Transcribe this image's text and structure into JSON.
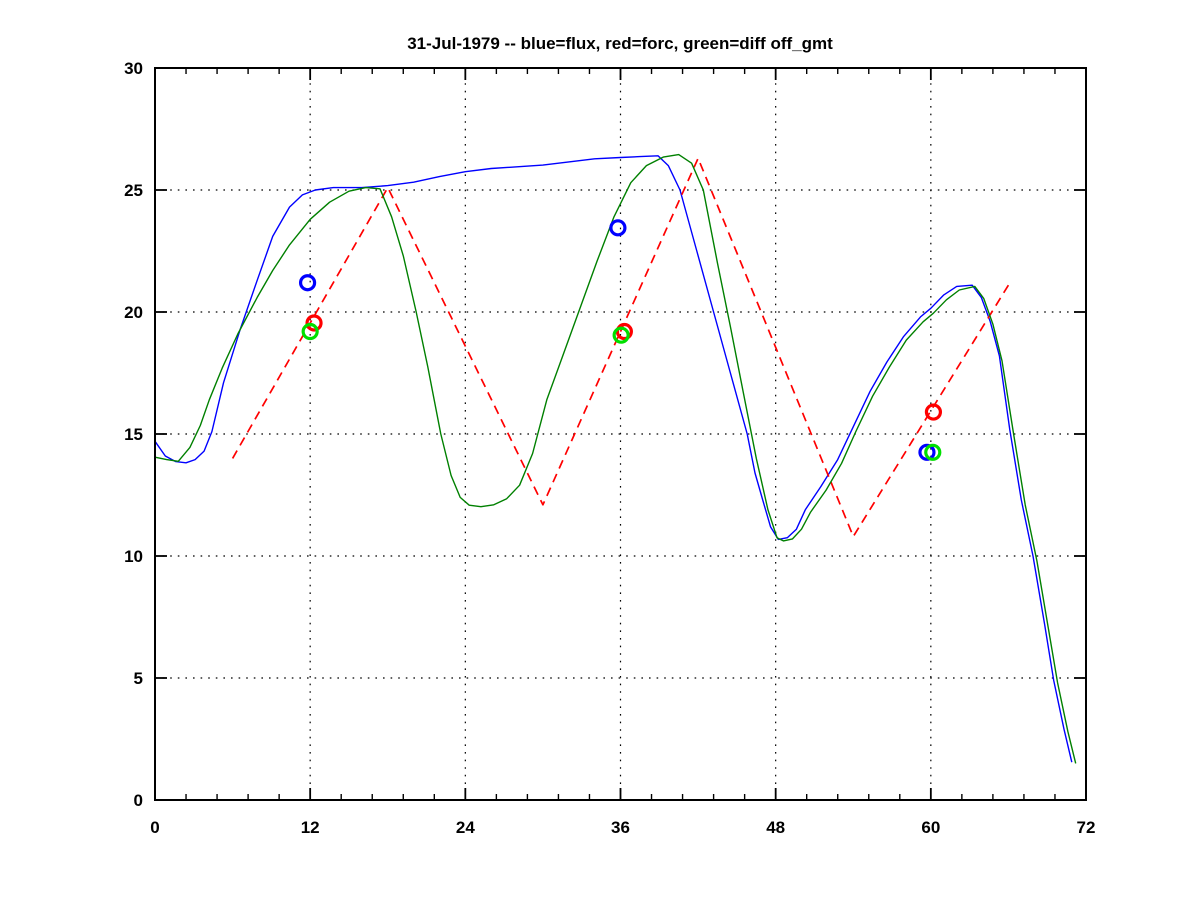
{
  "chart_data": {
    "type": "line",
    "title": "31-Jul-1979 -- blue=flux, red=forc, green=diff off_gmt",
    "xlabel": "",
    "ylabel": "",
    "xlim": [
      0,
      72
    ],
    "ylim": [
      0,
      30
    ],
    "x_ticks": [
      0,
      12,
      24,
      36,
      48,
      60,
      72
    ],
    "y_ticks": [
      0,
      5,
      10,
      15,
      20,
      25,
      30
    ],
    "x_minor_step": 2.4,
    "grid": "dotted",
    "legend_in_title": {
      "blue": "flux",
      "red": "forc",
      "green": "diff"
    },
    "colors": {
      "flux": "#0000ff",
      "forc": "#ff0000",
      "diff_line": "#008000",
      "diff_marker": "#00e000",
      "axis": "#000000",
      "background": "#ffffff"
    },
    "series": [
      {
        "name": "flux",
        "color": "#0000ff",
        "style": "solid",
        "points": [
          [
            0,
            14.7
          ],
          [
            0.8,
            14.1
          ],
          [
            1.6,
            13.87
          ],
          [
            2.4,
            13.82
          ],
          [
            3.1,
            13.95
          ],
          [
            3.8,
            14.3
          ],
          [
            4.4,
            15.1
          ],
          [
            5.3,
            17.1
          ],
          [
            6.6,
            19.3
          ],
          [
            7.9,
            21.3
          ],
          [
            9.1,
            23.1
          ],
          [
            10.4,
            24.3
          ],
          [
            11.4,
            24.8
          ],
          [
            12.4,
            25.0
          ],
          [
            13.8,
            25.1
          ],
          [
            16,
            25.1
          ],
          [
            18,
            25.18
          ],
          [
            20,
            25.32
          ],
          [
            22,
            25.55
          ],
          [
            24,
            25.75
          ],
          [
            26,
            25.88
          ],
          [
            28,
            25.95
          ],
          [
            30,
            26.02
          ],
          [
            32,
            26.15
          ],
          [
            34,
            26.28
          ],
          [
            36,
            26.33
          ],
          [
            37.5,
            26.37
          ],
          [
            38.9,
            26.4
          ],
          [
            39.7,
            26.0
          ],
          [
            40.6,
            25.0
          ],
          [
            41.9,
            22.5
          ],
          [
            43.2,
            20.0
          ],
          [
            44.5,
            17.5
          ],
          [
            45.8,
            15.0
          ],
          [
            46.4,
            13.4
          ],
          [
            47.0,
            12.3
          ],
          [
            47.6,
            11.2
          ],
          [
            48.2,
            10.68
          ],
          [
            48.9,
            10.75
          ],
          [
            49.6,
            11.1
          ],
          [
            50.3,
            11.9
          ],
          [
            51.5,
            12.85
          ],
          [
            52.8,
            13.95
          ],
          [
            54,
            15.3
          ],
          [
            55.3,
            16.75
          ],
          [
            56.6,
            17.95
          ],
          [
            57.9,
            19.0
          ],
          [
            59.2,
            19.8
          ],
          [
            60,
            20.15
          ],
          [
            61,
            20.7
          ],
          [
            62,
            21.05
          ],
          [
            63.2,
            21.1
          ],
          [
            63.9,
            20.6
          ],
          [
            64.6,
            19.6
          ],
          [
            65.3,
            18.2
          ],
          [
            66.1,
            15.2
          ],
          [
            67,
            12.3
          ],
          [
            67.9,
            10.0
          ],
          [
            68.8,
            7.2
          ],
          [
            69.5,
            4.9
          ],
          [
            70.3,
            2.9
          ],
          [
            70.9,
            1.55
          ]
        ]
      },
      {
        "name": "forc",
        "color": "#ff0000",
        "style": "dashed",
        "points": [
          [
            6,
            14.0
          ],
          [
            18,
            25.1
          ],
          [
            30,
            12.1
          ],
          [
            42,
            26.3
          ],
          [
            54,
            10.8
          ],
          [
            66,
            21.1
          ]
        ]
      },
      {
        "name": "diff",
        "color": "#008000",
        "style": "solid",
        "points": [
          [
            0,
            14.05
          ],
          [
            0.9,
            13.95
          ],
          [
            1.8,
            13.88
          ],
          [
            2.7,
            14.45
          ],
          [
            3.5,
            15.35
          ],
          [
            4.2,
            16.4
          ],
          [
            5.2,
            17.7
          ],
          [
            6.4,
            19.1
          ],
          [
            7.9,
            20.6
          ],
          [
            9.1,
            21.7
          ],
          [
            10.4,
            22.75
          ],
          [
            12,
            23.8
          ],
          [
            13.5,
            24.5
          ],
          [
            15,
            24.95
          ],
          [
            16.3,
            25.1
          ],
          [
            17.4,
            25.05
          ],
          [
            18.3,
            23.9
          ],
          [
            19.2,
            22.3
          ],
          [
            20.2,
            20.0
          ],
          [
            21.1,
            17.75
          ],
          [
            22.1,
            15.0
          ],
          [
            22.9,
            13.3
          ],
          [
            23.6,
            12.4
          ],
          [
            24.3,
            12.08
          ],
          [
            25.2,
            12.02
          ],
          [
            26.2,
            12.1
          ],
          [
            27.2,
            12.35
          ],
          [
            28.2,
            12.9
          ],
          [
            29.2,
            14.2
          ],
          [
            30.3,
            16.4
          ],
          [
            31.6,
            18.3
          ],
          [
            32.9,
            20.2
          ],
          [
            34.2,
            22.1
          ],
          [
            35.5,
            23.9
          ],
          [
            36.8,
            25.3
          ],
          [
            38,
            26.0
          ],
          [
            39.3,
            26.35
          ],
          [
            40.5,
            26.45
          ],
          [
            41.5,
            26.1
          ],
          [
            42.4,
            25.0
          ],
          [
            43.5,
            22.0
          ],
          [
            44.5,
            19.4
          ],
          [
            45.5,
            16.7
          ],
          [
            46.5,
            14.0
          ],
          [
            47.4,
            11.9
          ],
          [
            48.1,
            10.75
          ],
          [
            48.6,
            10.62
          ],
          [
            49.3,
            10.7
          ],
          [
            50,
            11.1
          ],
          [
            50.7,
            11.8
          ],
          [
            51.9,
            12.7
          ],
          [
            53.1,
            13.8
          ],
          [
            54.2,
            15.1
          ],
          [
            55.5,
            16.55
          ],
          [
            56.8,
            17.75
          ],
          [
            58.1,
            18.85
          ],
          [
            59.4,
            19.6
          ],
          [
            60.2,
            19.95
          ],
          [
            61.2,
            20.5
          ],
          [
            62.2,
            20.9
          ],
          [
            63.4,
            21.05
          ],
          [
            64.1,
            20.55
          ],
          [
            64.8,
            19.5
          ],
          [
            65.5,
            18.0
          ],
          [
            66.4,
            15.0
          ],
          [
            67.3,
            12.1
          ],
          [
            68.2,
            9.8
          ],
          [
            69.1,
            7.0
          ],
          [
            69.8,
            4.8
          ],
          [
            70.6,
            2.8
          ],
          [
            71.2,
            1.5
          ]
        ]
      }
    ],
    "markers": [
      {
        "name": "flux-points",
        "color": "#0000ff",
        "points": [
          [
            11.8,
            21.2
          ],
          [
            35.8,
            23.45
          ],
          [
            59.7,
            14.25
          ]
        ]
      },
      {
        "name": "forc-points",
        "color": "#ff0000",
        "points": [
          [
            12.3,
            19.55
          ],
          [
            36.3,
            19.2
          ],
          [
            60.2,
            15.9
          ]
        ]
      },
      {
        "name": "diff-points",
        "color": "#00e000",
        "points": [
          [
            12.0,
            19.2
          ],
          [
            36.05,
            19.05
          ],
          [
            60.15,
            14.25
          ]
        ]
      }
    ]
  }
}
